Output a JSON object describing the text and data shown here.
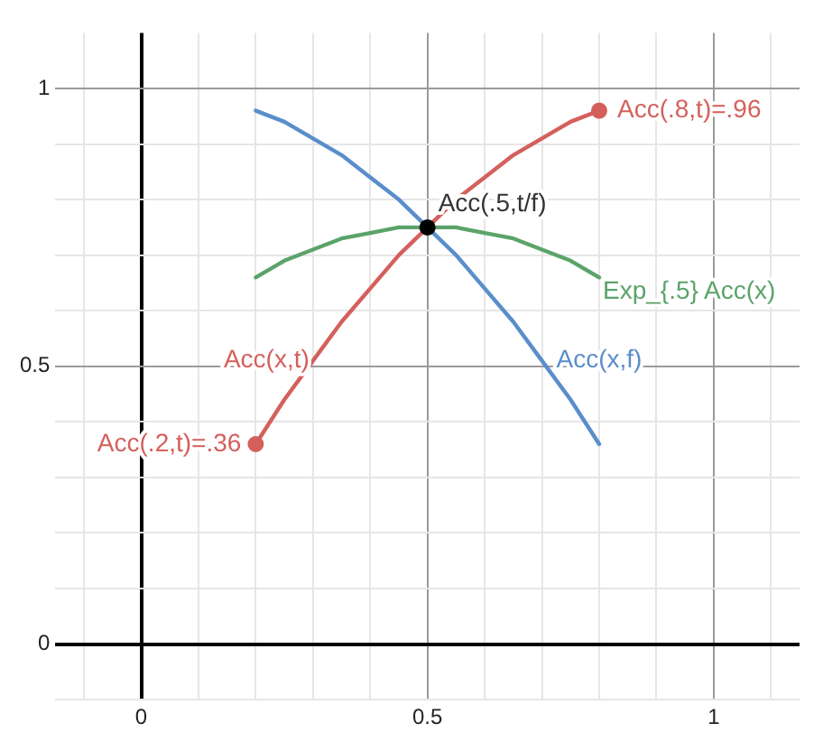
{
  "chart_data": {
    "type": "line",
    "xlim": [
      -0.15,
      1.15
    ],
    "ylim": [
      -0.1,
      1.1
    ],
    "xticks": [
      {
        "value": -0.1,
        "label": null
      },
      0,
      {
        "value": 0.1,
        "label": null
      },
      {
        "value": 0.2,
        "label": null
      },
      {
        "value": 0.3,
        "label": null
      },
      {
        "value": 0.4,
        "label": null
      },
      0.5,
      {
        "value": 0.6,
        "label": null
      },
      {
        "value": 0.7,
        "label": null
      },
      {
        "value": 0.8,
        "label": null
      },
      {
        "value": 0.9,
        "label": null
      },
      1,
      {
        "value": 1.1,
        "label": null
      }
    ],
    "yticks": [
      {
        "value": -0.1,
        "label": null
      },
      0,
      {
        "value": 0.1,
        "label": null
      },
      {
        "value": 0.2,
        "label": null
      },
      {
        "value": 0.3,
        "label": null
      },
      {
        "value": 0.4,
        "label": null
      },
      0.5,
      {
        "value": 0.6,
        "label": null
      },
      {
        "value": 0.7,
        "label": null
      },
      {
        "value": 0.8,
        "label": null
      },
      {
        "value": 0.9,
        "label": null
      },
      1
    ],
    "grid": true,
    "legend": false,
    "series": [
      {
        "name": "Acc(x,t)",
        "color": "#d4605c",
        "x": [
          0.2,
          0.25,
          0.3,
          0.35,
          0.4,
          0.45,
          0.5,
          0.55,
          0.6,
          0.65,
          0.7,
          0.75,
          0.8
        ],
        "values": [
          0.36,
          0.44,
          0.51,
          0.58,
          0.64,
          0.7,
          0.75,
          0.8,
          0.84,
          0.88,
          0.91,
          0.94,
          0.96
        ]
      },
      {
        "name": "Acc(x,f)",
        "color": "#5a8ecb",
        "x": [
          0.2,
          0.25,
          0.3,
          0.35,
          0.4,
          0.45,
          0.5,
          0.55,
          0.6,
          0.65,
          0.7,
          0.75,
          0.8
        ],
        "values": [
          0.96,
          0.94,
          0.91,
          0.88,
          0.84,
          0.8,
          0.75,
          0.7,
          0.64,
          0.58,
          0.51,
          0.44,
          0.36
        ]
      },
      {
        "name": "Exp_{.5} Acc(x)",
        "color": "#5ba36a",
        "x": [
          0.2,
          0.25,
          0.3,
          0.35,
          0.4,
          0.45,
          0.5,
          0.55,
          0.6,
          0.65,
          0.7,
          0.75,
          0.8
        ],
        "values": [
          0.66,
          0.69,
          0.71,
          0.73,
          0.74,
          0.75,
          0.75,
          0.75,
          0.74,
          0.73,
          0.71,
          0.69,
          0.66
        ]
      },
      {
        "type": "scatter",
        "color": "#d4605c",
        "x": [
          0.2,
          0.8
        ],
        "values": [
          0.36,
          0.96
        ]
      },
      {
        "type": "scatter",
        "color": "#000000",
        "x": [
          0.5
        ],
        "values": [
          0.75
        ]
      }
    ],
    "annotations": [
      {
        "text": "Acc(.8,t)=.96",
        "x": 0.8,
        "y": 0.96
      },
      {
        "text": "Acc(.2,t)=.36",
        "x": 0.2,
        "y": 0.36
      },
      {
        "text": "Acc(.5,t/f)",
        "x": 0.5,
        "y": 0.75
      }
    ]
  }
}
